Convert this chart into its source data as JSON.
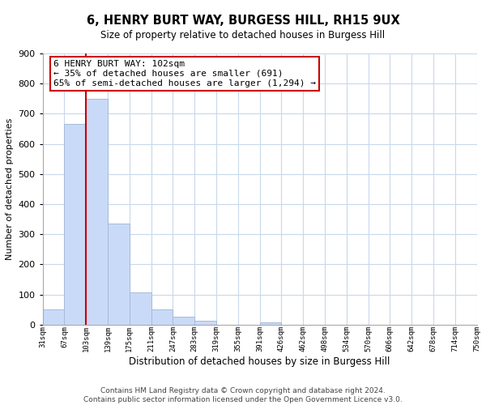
{
  "title": "6, HENRY BURT WAY, BURGESS HILL, RH15 9UX",
  "subtitle": "Size of property relative to detached houses in Burgess Hill",
  "xlabel": "Distribution of detached houses by size in Burgess Hill",
  "ylabel": "Number of detached properties",
  "footer_line1": "Contains HM Land Registry data © Crown copyright and database right 2024.",
  "footer_line2": "Contains public sector information licensed under the Open Government Licence v3.0.",
  "bin_labels": [
    "31sqm",
    "67sqm",
    "103sqm",
    "139sqm",
    "175sqm",
    "211sqm",
    "247sqm",
    "283sqm",
    "319sqm",
    "355sqm",
    "391sqm",
    "426sqm",
    "462sqm",
    "498sqm",
    "534sqm",
    "570sqm",
    "606sqm",
    "642sqm",
    "678sqm",
    "714sqm",
    "750sqm"
  ],
  "bar_values": [
    52,
    665,
    750,
    335,
    107,
    52,
    27,
    14,
    0,
    0,
    8,
    0,
    0,
    0,
    0,
    0,
    0,
    0,
    0,
    0
  ],
  "bar_color": "#c9daf8",
  "bar_edge_color": "#a4bcd6",
  "grid_color": "#c8d8ec",
  "annotation_box_title": "6 HENRY BURT WAY: 102sqm",
  "annotation_line1": "← 35% of detached houses are smaller (691)",
  "annotation_line2": "65% of semi-detached houses are larger (1,294) →",
  "annotation_box_color": "#ffffff",
  "annotation_box_edge_color": "#cc0000",
  "property_line_color": "#cc0000",
  "ylim": [
    0,
    900
  ],
  "yticks": [
    0,
    100,
    200,
    300,
    400,
    500,
    600,
    700,
    800,
    900
  ],
  "background_color": "#ffffff"
}
